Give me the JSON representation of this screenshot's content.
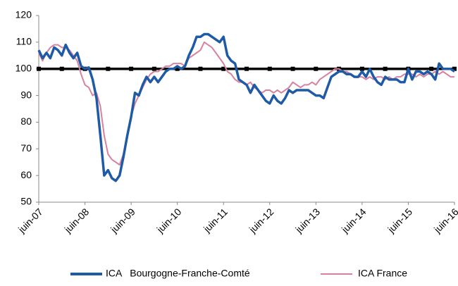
{
  "chart_data": {
    "type": "line",
    "categories": [
      "juin-07",
      null,
      null,
      null,
      null,
      null,
      null,
      null,
      null,
      null,
      null,
      null,
      "juin-08",
      null,
      null,
      null,
      null,
      null,
      null,
      null,
      null,
      null,
      null,
      null,
      "juin-09",
      null,
      null,
      null,
      null,
      null,
      null,
      null,
      null,
      null,
      null,
      null,
      "juin-10",
      null,
      null,
      null,
      null,
      null,
      null,
      null,
      null,
      null,
      null,
      null,
      "juin-11",
      null,
      null,
      null,
      null,
      null,
      null,
      null,
      null,
      null,
      null,
      null,
      "juin-12",
      null,
      null,
      null,
      null,
      null,
      null,
      null,
      null,
      null,
      null,
      null,
      "juin-13",
      null,
      null,
      null,
      null,
      null,
      null,
      null,
      null,
      null,
      null,
      null,
      "juin-14",
      null,
      null,
      null,
      null,
      null,
      null,
      null,
      null,
      null,
      null,
      null,
      "juin-15",
      null,
      null,
      null,
      null,
      null,
      null,
      null,
      null,
      null,
      null,
      null,
      "juin-16"
    ],
    "series": [
      {
        "name": "ICA   Bourgogne-Franche-Comté",
        "color": "#1f5aa6",
        "values": [
          107,
          104,
          106,
          104,
          108,
          107,
          105,
          109,
          106,
          104,
          106,
          101,
          100,
          100.5,
          96,
          89,
          75,
          60,
          62,
          59,
          58,
          60,
          67,
          75,
          82,
          91,
          90,
          94,
          97,
          95,
          97,
          95,
          97,
          99,
          100,
          100,
          101,
          100,
          101,
          105,
          108,
          112,
          112,
          113,
          113,
          112,
          111,
          110,
          112,
          105,
          103,
          102,
          96,
          95,
          94,
          91,
          94,
          92,
          90,
          88,
          87,
          90,
          88,
          87,
          89,
          92,
          91,
          92,
          92,
          92,
          92,
          91,
          90,
          90,
          89,
          93,
          97,
          98,
          99,
          99,
          98,
          98,
          97,
          97,
          99,
          97,
          100,
          97,
          95,
          94,
          97,
          96,
          96,
          96,
          95,
          95,
          100,
          96,
          99,
          99,
          98,
          99,
          98,
          96,
          102,
          100,
          100,
          100,
          99
        ]
      },
      {
        "name": "ICA France",
        "color": "#d9809f",
        "values": [
          106,
          103,
          106,
          108,
          109,
          109,
          108,
          108,
          107,
          105,
          103,
          98,
          94,
          93,
          90,
          91,
          86,
          75,
          68,
          66,
          65,
          64,
          68,
          75,
          82,
          87,
          90,
          93,
          96,
          98,
          99,
          99,
          100,
          101,
          101,
          102,
          102,
          102,
          101,
          104,
          105,
          106,
          107,
          110,
          109,
          108,
          106,
          104,
          102,
          99,
          98,
          96,
          95,
          95,
          94,
          95,
          93,
          92,
          91,
          92,
          92,
          91,
          92,
          91,
          92,
          93,
          95,
          94,
          93,
          94,
          94,
          95,
          94,
          96,
          97,
          98,
          99,
          100,
          100,
          99,
          99,
          98,
          97,
          97,
          97,
          96,
          97,
          96,
          97,
          97,
          96,
          97,
          96,
          97,
          97,
          98,
          98,
          98,
          97,
          98,
          97,
          98,
          98,
          99,
          98,
          99,
          98,
          97,
          97
        ]
      }
    ],
    "reference_line": 100,
    "reference_color": "#000000",
    "ylim": [
      50,
      120
    ],
    "yticks": [
      50,
      60,
      70,
      80,
      90,
      100,
      110,
      120
    ]
  }
}
